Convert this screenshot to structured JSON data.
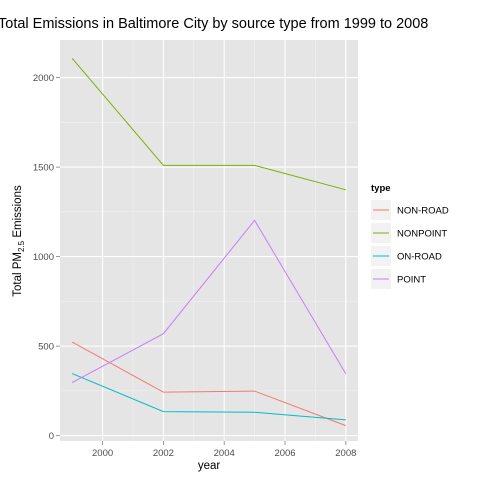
{
  "chart_data": {
    "type": "line",
    "title": "Total Emissions in Baltimore City by source type from 1999 to 2008",
    "xlabel": "year",
    "ylabel": {
      "prefix": "Total PM",
      "subscript": "2.5",
      "suffix": " Emissions"
    },
    "x": [
      1999,
      2002,
      2005,
      2008
    ],
    "xlim": [
      1998.6,
      2008.4
    ],
    "ylim": [
      -30,
      2210
    ],
    "x_ticks": [
      2000,
      2002,
      2004,
      2006,
      2008
    ],
    "y_ticks": [
      0,
      500,
      1000,
      1500,
      2000
    ],
    "grid": true,
    "legend": {
      "title": "type",
      "placement": "right"
    },
    "series": [
      {
        "name": "NON-ROAD",
        "color": "#F8766D",
        "values": [
          522.9,
          242.7,
          248.9,
          55.8
        ]
      },
      {
        "name": "NONPOINT",
        "color": "#7CAE00",
        "values": [
          2107.6,
          1509.5,
          1509.5,
          1373.2
        ]
      },
      {
        "name": "ON-ROAD",
        "color": "#00BFC4",
        "values": [
          346.8,
          134.3,
          130.4,
          88.3
        ]
      },
      {
        "name": "POINT",
        "color": "#C77CFF",
        "values": [
          296.8,
          569.3,
          1202.5,
          344.98
        ]
      }
    ]
  }
}
